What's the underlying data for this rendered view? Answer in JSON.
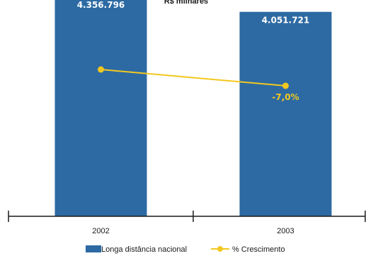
{
  "chart_data": {
    "type": "bar",
    "title": "R$ milhares",
    "categories": [
      "2002",
      "2003"
    ],
    "series": [
      {
        "name": "Longa distância nacional",
        "type": "bar",
        "values": [
          4356796,
          4051721
        ],
        "labels": [
          "4.356.796",
          "4.051.721"
        ],
        "color": "#2d6aa3"
      },
      {
        "name": "% Crescimento",
        "type": "line",
        "labels": [
          "",
          "-7,0%"
        ],
        "color": "#f2c81f"
      }
    ],
    "grid": false,
    "legend": "bottom"
  }
}
